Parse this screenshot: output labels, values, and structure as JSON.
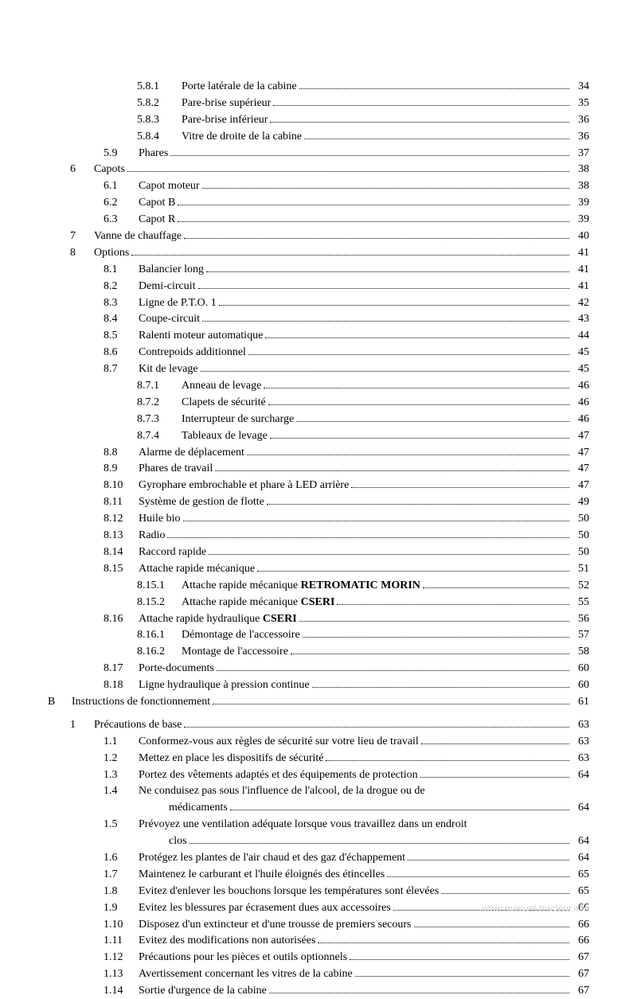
{
  "text_color": "#000000",
  "background_color": "#ffffff",
  "font_family": "Times New Roman",
  "font_size_pt": 11,
  "watermark": "www.manuel-tracteur.info",
  "entries": [
    {
      "indent": 3,
      "num": "5.8.1",
      "label": "Porte latérale de la cabine",
      "page": "34"
    },
    {
      "indent": 3,
      "num": "5.8.2",
      "label": "Pare-brise supérieur",
      "page": "35"
    },
    {
      "indent": 3,
      "num": "5.8.3",
      "label": "Pare-brise inférieur",
      "page": "36"
    },
    {
      "indent": 3,
      "num": "5.8.4",
      "label": "Vitre de droite de la cabine",
      "page": "36"
    },
    {
      "indent": 2,
      "num": "5.9",
      "label": "Phares",
      "page": "37"
    },
    {
      "indent": 1,
      "num": "6",
      "label": "Capots",
      "page": "38"
    },
    {
      "indent": 2,
      "num": "6.1",
      "label": "Capot moteur",
      "page": "38"
    },
    {
      "indent": 2,
      "num": "6.2",
      "label": "Capot B",
      "page": "39"
    },
    {
      "indent": 2,
      "num": "6.3",
      "label": "Capot R",
      "page": "39"
    },
    {
      "indent": 1,
      "num": "7",
      "label": "Vanne de chauffage",
      "page": "40"
    },
    {
      "indent": 1,
      "num": "8",
      "label": "Options",
      "page": "41"
    },
    {
      "indent": 2,
      "num": "8.1",
      "label": "Balancier long",
      "page": "41"
    },
    {
      "indent": 2,
      "num": "8.2",
      "label": "Demi-circuit",
      "page": "41"
    },
    {
      "indent": 2,
      "num": "8.3",
      "label": "Ligne de P.T.O. 1",
      "page": "42"
    },
    {
      "indent": 2,
      "num": "8.4",
      "label": "Coupe-circuit",
      "page": "43"
    },
    {
      "indent": 2,
      "num": "8.5",
      "label": "Ralenti moteur automatique",
      "page": "44"
    },
    {
      "indent": 2,
      "num": "8.6",
      "label": "Contrepoids additionnel",
      "page": "45"
    },
    {
      "indent": 2,
      "num": "8.7",
      "label": "Kit de levage",
      "page": "45"
    },
    {
      "indent": 3,
      "num": "8.7.1",
      "label": "Anneau de levage",
      "page": "46"
    },
    {
      "indent": 3,
      "num": "8.7.2",
      "label": "Clapets de sécurité",
      "page": "46"
    },
    {
      "indent": 3,
      "num": "8.7.3",
      "label": "Interrupteur de surcharge",
      "page": "46"
    },
    {
      "indent": 3,
      "num": "8.7.4",
      "label": "Tableaux de levage",
      "page": "47"
    },
    {
      "indent": 2,
      "num": "8.8",
      "label": "Alarme de déplacement",
      "page": "47"
    },
    {
      "indent": 2,
      "num": "8.9",
      "label": "Phares de travail",
      "page": "47"
    },
    {
      "indent": 2,
      "num": "8.10",
      "label": "Gyrophare embrochable et phare à LED arrière",
      "page": "47"
    },
    {
      "indent": 2,
      "num": "8.11",
      "label": "Système de gestion de flotte",
      "page": "49"
    },
    {
      "indent": 2,
      "num": "8.12",
      "label": "Huile bio",
      "page": "50"
    },
    {
      "indent": 2,
      "num": "8.13",
      "label": "Radio",
      "page": "50"
    },
    {
      "indent": 2,
      "num": "8.14",
      "label": "Raccord rapide",
      "page": "50"
    },
    {
      "indent": 2,
      "num": "8.15",
      "label": "Attache rapide mécanique",
      "page": "51"
    },
    {
      "indent": 3,
      "num": "8.15.1",
      "label_html": "Attache rapide mécanique <b>RETROMATIC MORIN</b>",
      "page": "52"
    },
    {
      "indent": 3,
      "num": "8.15.2",
      "label_html": "Attache rapide mécanique <b>CSERI</b>",
      "page": "55"
    },
    {
      "indent": 2,
      "num": "8.16",
      "label_html": "Attache rapide hydraulique <b>CSERI</b>",
      "page": "56"
    },
    {
      "indent": 3,
      "num": "8.16.1",
      "label": "Démontage de l'accessoire",
      "page": "57"
    },
    {
      "indent": 3,
      "num": "8.16.2",
      "label": "Montage de l'accessoire",
      "page": "58"
    },
    {
      "indent": 2,
      "num": "8.17",
      "label": "Porte-documents",
      "page": "60"
    },
    {
      "indent": 2,
      "num": "8.18",
      "label": "Ligne hydraulique à pression continue",
      "page": "60"
    },
    {
      "indent": 0,
      "num": "B",
      "label": "Instructions de fonctionnement",
      "page": "61",
      "gap_after": true
    },
    {
      "indent": 1,
      "num": "1",
      "label": "Précautions de base",
      "page": "63"
    },
    {
      "indent": 2,
      "num": "1.1",
      "label": "Conformez-vous aux règles de sécurité sur votre lieu de travail",
      "page": "63"
    },
    {
      "indent": 2,
      "num": "1.2",
      "label": "Mettez en place les dispositifs de sécurité",
      "page": "63"
    },
    {
      "indent": 2,
      "num": "1.3",
      "label": "Portez des vêtements adaptés et des équipements de protection",
      "page": "64"
    },
    {
      "indent": 2,
      "num": "1.4",
      "label": "Ne conduisez pas sous l'influence de l'alcool, de la drogue ou de",
      "cont": "médicaments",
      "page": "64"
    },
    {
      "indent": 2,
      "num": "1.5",
      "label": "Prévoyez une ventilation adéquate lorsque vous travaillez dans un endroit",
      "cont": "clos",
      "page": "64"
    },
    {
      "indent": 2,
      "num": "1.6",
      "label": "Protégez les plantes de l'air chaud et des gaz d'échappement",
      "page": "64"
    },
    {
      "indent": 2,
      "num": "1.7",
      "label": "Maintenez le carburant et l'huile éloignés des étincelles",
      "page": "65"
    },
    {
      "indent": 2,
      "num": "1.8",
      "label": "Evitez d'enlever les bouchons lorsque les températures sont élevées",
      "page": "65"
    },
    {
      "indent": 2,
      "num": "1.9",
      "label": "Evitez les blessures par écrasement dues aux accessoires",
      "page": "66"
    },
    {
      "indent": 2,
      "num": "1.10",
      "label": "Disposez d'un extincteur et d'une trousse de premiers secours",
      "page": "66"
    },
    {
      "indent": 2,
      "num": "1.11",
      "label": "Evitez des modifications non autorisées",
      "page": "66"
    },
    {
      "indent": 2,
      "num": "1.12",
      "label": "Précautions pour les pièces et outils optionnels",
      "page": "67"
    },
    {
      "indent": 2,
      "num": "1.13",
      "label": "Avertissement concernant les vitres de la cabine",
      "page": "67"
    },
    {
      "indent": 2,
      "num": "1.14",
      "label": "Sortie d'urgence de la cabine",
      "page": "67"
    }
  ]
}
